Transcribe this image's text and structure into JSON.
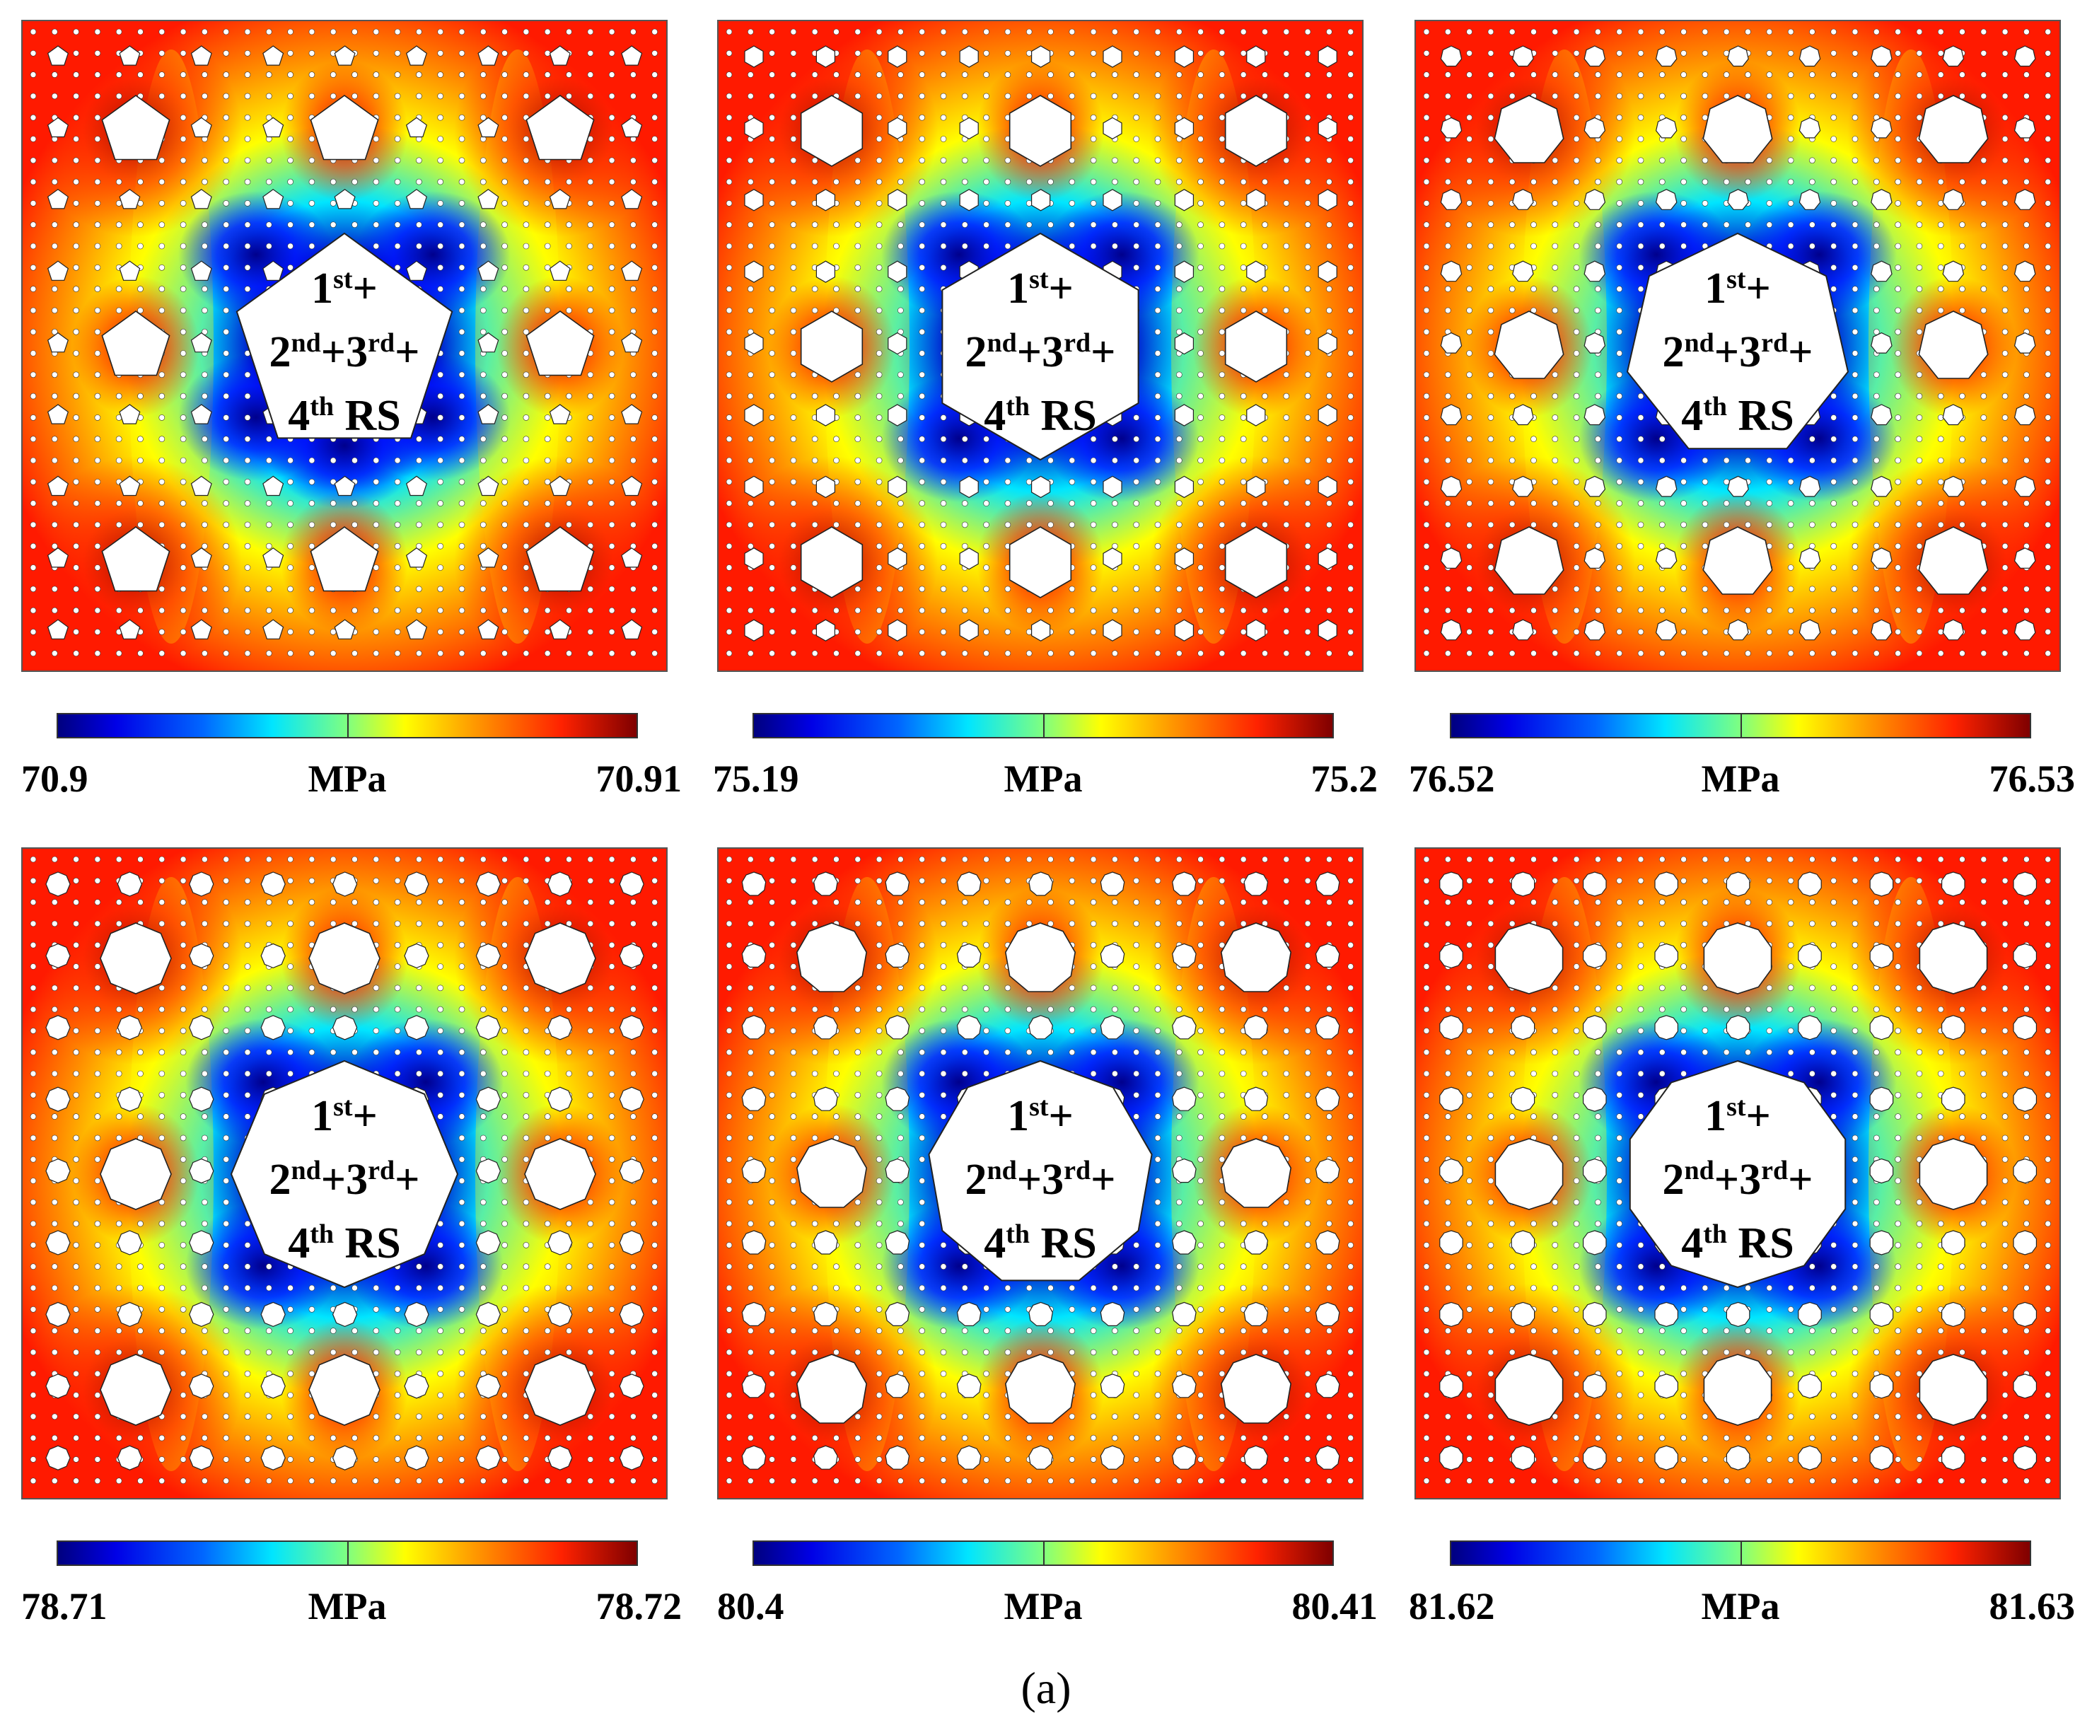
{
  "panels": [
    {
      "hole_shape": "pentagon",
      "sides": 5,
      "label": {
        "l1": "1",
        "l1sup": "st",
        "l1post": "+",
        "l2a": "2",
        "l2asup": "nd",
        "l2mid": "+3",
        "l2bsup": "rd",
        "l2post": "+",
        "l3": "4",
        "l3sup": "th",
        "l3post": " RS"
      },
      "colorbar": {
        "min": "70.9",
        "max": "70.91",
        "unit": "MPa"
      }
    },
    {
      "hole_shape": "hexagon",
      "sides": 6,
      "label": {
        "l1": "1",
        "l1sup": "st",
        "l1post": "+",
        "l2a": "2",
        "l2asup": "nd",
        "l2mid": "+3",
        "l2bsup": "rd",
        "l2post": "+",
        "l3": "4",
        "l3sup": "th",
        "l3post": " RS"
      },
      "colorbar": {
        "min": "75.19",
        "max": "75.2",
        "unit": "MPa"
      }
    },
    {
      "hole_shape": "heptagon",
      "sides": 7,
      "label": {
        "l1": "1",
        "l1sup": "st",
        "l1post": "+",
        "l2a": "2",
        "l2asup": "nd",
        "l2mid": "+3",
        "l2bsup": "rd",
        "l2post": "+",
        "l3": "4",
        "l3sup": "th",
        "l3post": " RS"
      },
      "colorbar": {
        "min": "76.52",
        "max": "76.53",
        "unit": "MPa"
      }
    },
    {
      "hole_shape": "octagon",
      "sides": 8,
      "label": {
        "l1": "1",
        "l1sup": "st",
        "l1post": "+",
        "l2a": "2",
        "l2asup": "nd",
        "l2mid": "+3",
        "l2bsup": "rd",
        "l2post": "+",
        "l3": "4",
        "l3sup": "th",
        "l3post": " RS"
      },
      "colorbar": {
        "min": "78.71",
        "max": "78.72",
        "unit": "MPa"
      }
    },
    {
      "hole_shape": "nonagon",
      "sides": 9,
      "label": {
        "l1": "1",
        "l1sup": "st",
        "l1post": "+",
        "l2a": "2",
        "l2asup": "nd",
        "l2mid": "+3",
        "l2bsup": "rd",
        "l2post": "+",
        "l3": "4",
        "l3sup": "th",
        "l3post": " RS"
      },
      "colorbar": {
        "min": "80.4",
        "max": "80.41",
        "unit": "MPa"
      }
    },
    {
      "hole_shape": "decagon",
      "sides": 10,
      "label": {
        "l1": "1",
        "l1sup": "st",
        "l1post": "+",
        "l2a": "2",
        "l2asup": "nd",
        "l2mid": "+3",
        "l2bsup": "rd",
        "l2post": "+",
        "l3": "4",
        "l3sup": "th",
        "l3post": " RS"
      },
      "colorbar": {
        "min": "81.62",
        "max": "81.63",
        "unit": "MPa"
      }
    }
  ],
  "caption": "(a)",
  "colors": {
    "blue": "#0000c8",
    "cyan": "#00e5ff",
    "yellow": "#ffff00",
    "orange": "#ff8c00",
    "red": "#ff1a00",
    "darkred": "#9a0000"
  }
}
